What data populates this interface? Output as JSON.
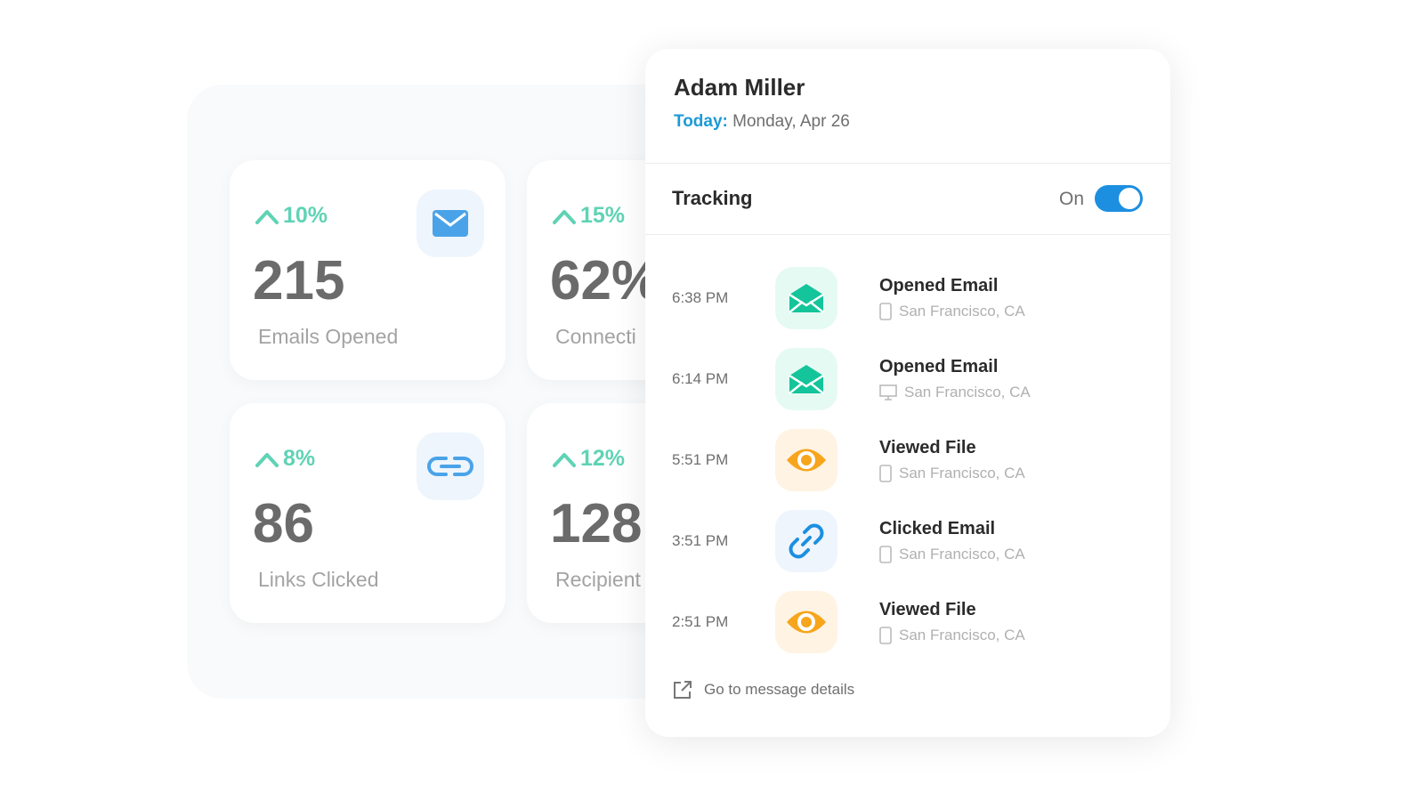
{
  "stats": [
    {
      "change": "10%",
      "value": "215",
      "label": "Emails Opened"
    },
    {
      "change": "15%",
      "value": "62%",
      "label": "Connecti"
    },
    {
      "change": "8%",
      "value": "86",
      "label": "Links Clicked"
    },
    {
      "change": "12%",
      "value": "128",
      "label": "Recipient"
    }
  ],
  "panel": {
    "name": "Adam Miller",
    "today_label": "Today:",
    "date": "Monday, Apr 26",
    "tracking": "Tracking",
    "toggle": "On",
    "events": [
      {
        "time": "6:38 PM",
        "action": "Opened Email",
        "location": "San Francisco, CA"
      },
      {
        "time": "6:14 PM",
        "action": "Opened Email",
        "location": "San Francisco, CA"
      },
      {
        "time": "5:51 PM",
        "action": "Viewed File",
        "location": "San Francisco, CA"
      },
      {
        "time": "3:51 PM",
        "action": "Clicked Email",
        "location": "San Francisco, CA"
      },
      {
        "time": "2:51 PM",
        "action": "Viewed File",
        "location": "San Francisco, CA"
      }
    ],
    "link": "Go to message details"
  }
}
